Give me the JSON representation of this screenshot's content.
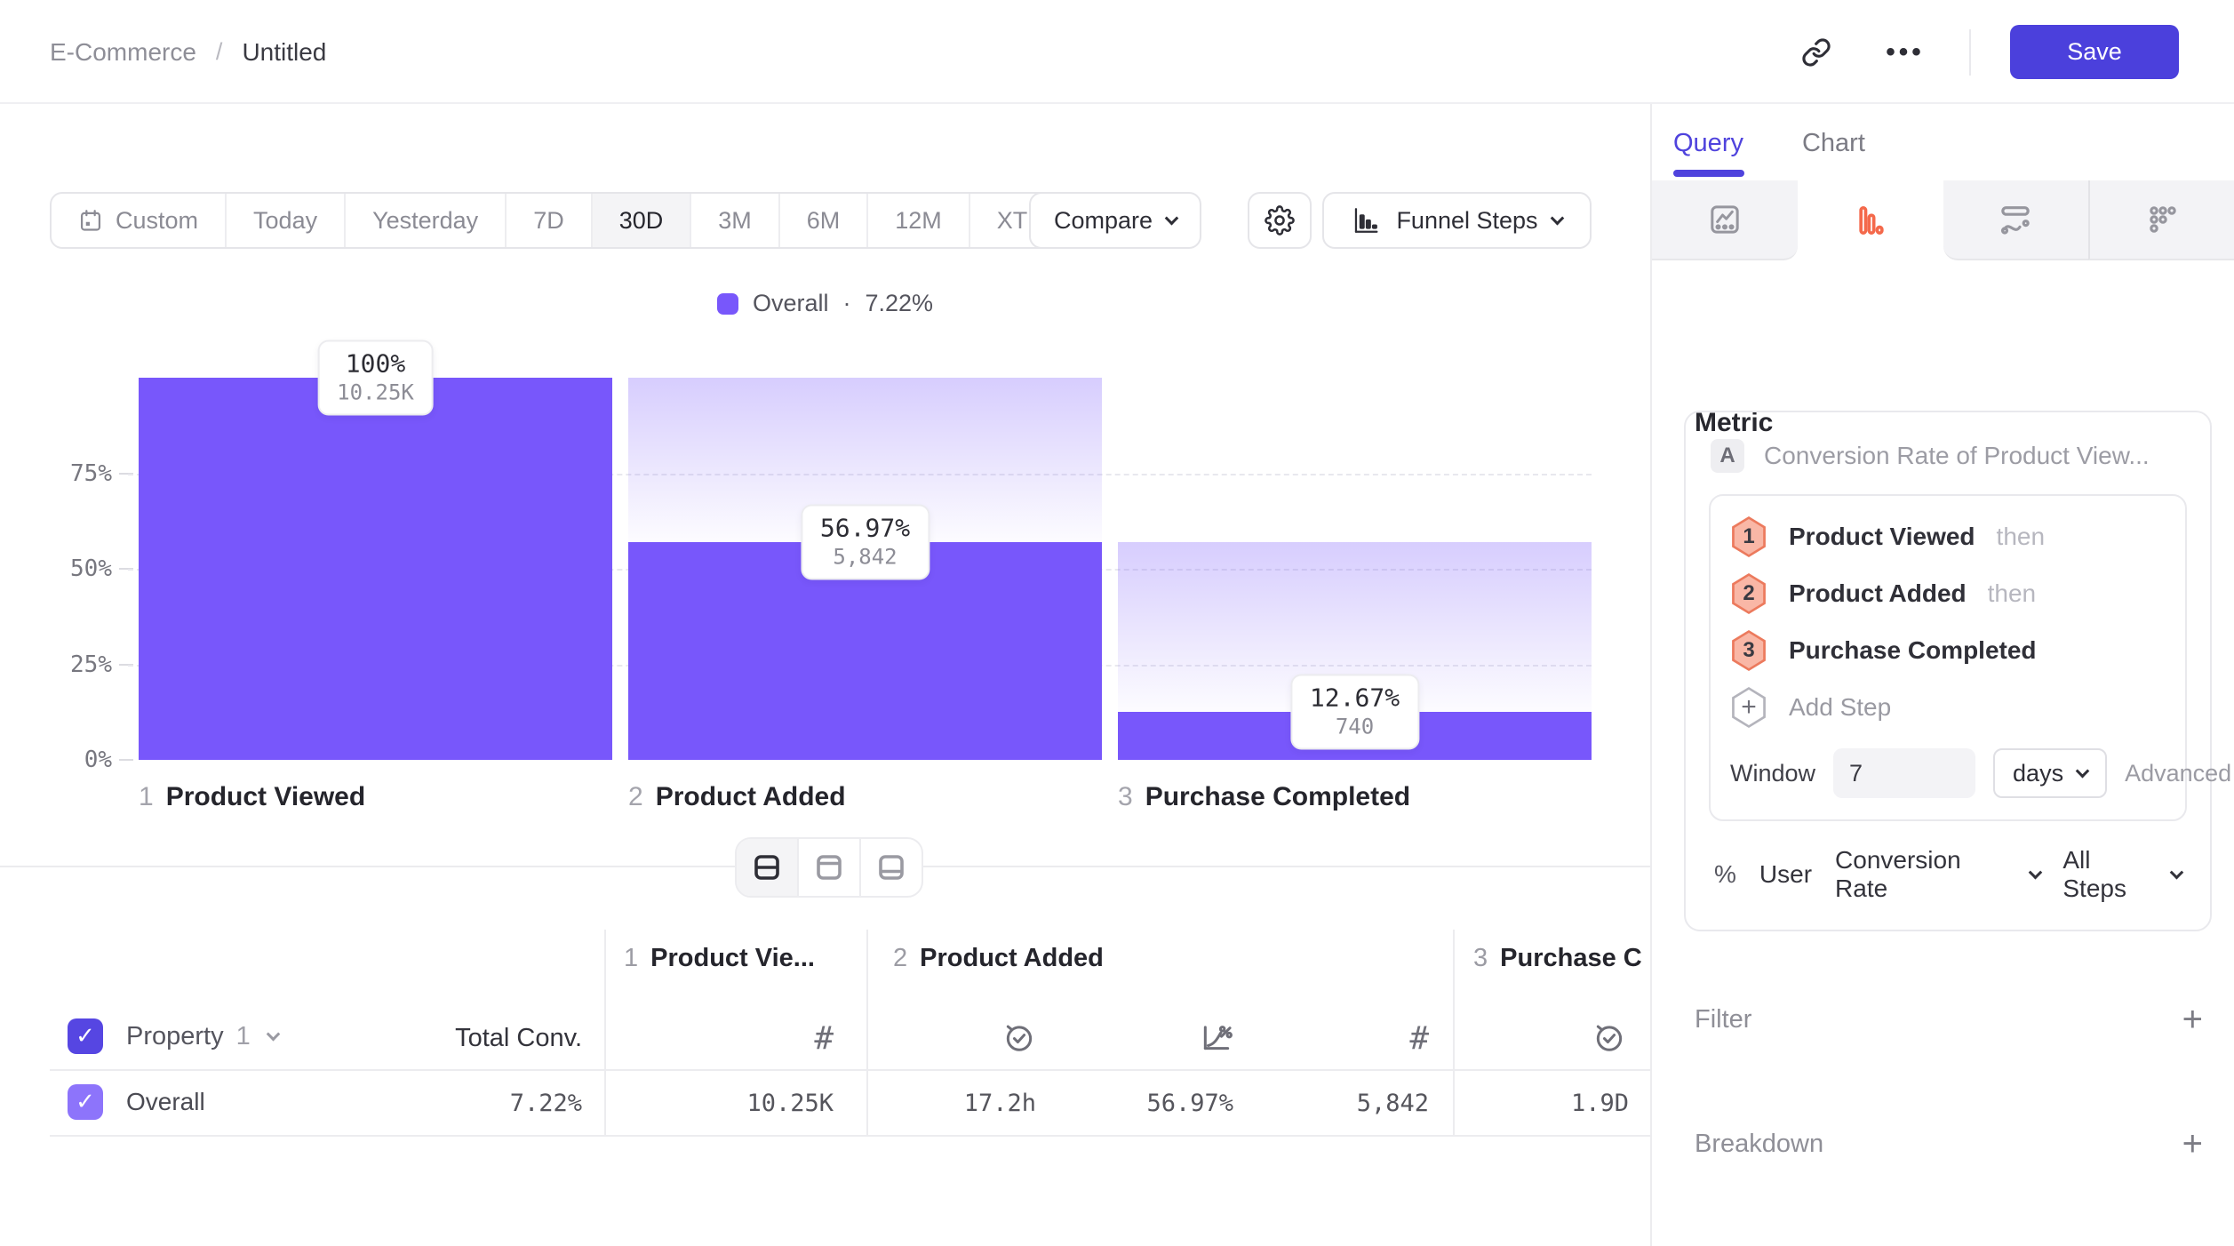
{
  "topbar": {
    "breadcrumb_root": "E-Commerce",
    "breadcrumb_separator": "/",
    "breadcrumb_current": "Untitled",
    "more_label": "•••",
    "save_label": "Save"
  },
  "toolbar": {
    "date_ranges": [
      {
        "label": "Custom"
      },
      {
        "label": "Today"
      },
      {
        "label": "Yesterday"
      },
      {
        "label": "7D"
      },
      {
        "label": "30D",
        "active": true
      },
      {
        "label": "3M"
      },
      {
        "label": "6M"
      },
      {
        "label": "12M"
      },
      {
        "label": "XTD"
      }
    ],
    "compare_label": "Compare",
    "chart_type_label": "Funnel Steps"
  },
  "legend": {
    "series": "Overall",
    "separator": "·",
    "value": "7.22%"
  },
  "chart_data": {
    "type": "bar",
    "subtype": "funnel-steps",
    "title": "Overall · 7.22%",
    "series_name": "Overall",
    "overall_conversion_pct": 7.22,
    "categories": [
      "Product Viewed",
      "Product Added",
      "Purchase Completed"
    ],
    "steps": [
      {
        "index": "1",
        "label": "Product Viewed",
        "pct": 100,
        "pct_label": "100%",
        "count": 10250,
        "count_label": "10.25K"
      },
      {
        "index": "2",
        "label": "Product Added",
        "pct": 56.97,
        "pct_label": "56.97%",
        "count": 5842,
        "count_label": "5,842"
      },
      {
        "index": "3",
        "label": "Purchase Completed",
        "pct": 12.67,
        "pct_label": "12.67%",
        "count": 740,
        "count_label": "740"
      }
    ],
    "ylim": [
      0,
      100
    ],
    "y_ticks": [
      "75%",
      "50%",
      "25%",
      "0%"
    ],
    "grid": "dashed",
    "legend_position": "top-center",
    "series_color": "#7857fb"
  },
  "table": {
    "property_label": "Property",
    "property_index": "1",
    "total_conv_label": "Total Conv.",
    "groups": [
      {
        "index": "1",
        "label": "Product Vie..."
      },
      {
        "index": "2",
        "label": "Product Added"
      },
      {
        "index": "3",
        "label": "Purchase C"
      }
    ],
    "row": {
      "name": "Overall",
      "total_conv": "7.22%",
      "values": [
        "10.25K",
        "17.2h",
        "56.97%",
        "5,842",
        "1.9D"
      ]
    }
  },
  "sidebar": {
    "tabs": [
      {
        "label": "Query",
        "active": true
      },
      {
        "label": "Chart",
        "active": false
      }
    ],
    "metric_heading": "Metric",
    "metric": {
      "badge": "A",
      "title": "Conversion Rate of Product View...",
      "steps": [
        {
          "num": "1",
          "label": "Product Viewed",
          "suffix": "then"
        },
        {
          "num": "2",
          "label": "Product Added",
          "suffix": "then"
        },
        {
          "num": "3",
          "label": "Purchase Completed",
          "suffix": ""
        }
      ],
      "add_step_label": "Add Step",
      "window_label": "Window",
      "window_value": "7",
      "window_unit": "days",
      "advanced_label": "Advanced",
      "measure_prefix": "%",
      "measure_entity": "User",
      "measure_type": "Conversion Rate",
      "measure_scope": "All Steps"
    },
    "filter_label": "Filter",
    "breakdown_label": "Breakdown"
  },
  "colors": {
    "accent": "#4b40dc",
    "bar": "#7857fb",
    "funnel_tab_icon": "#f4694b",
    "step_badge_fill": "#f9b7a6",
    "step_badge_border": "#ec7a5d"
  }
}
